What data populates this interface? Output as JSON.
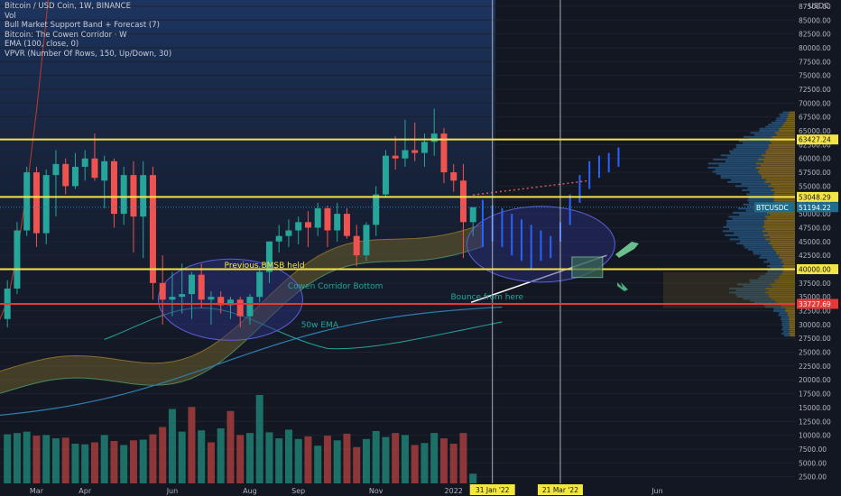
{
  "legend": {
    "title": "Bitcoin / USD Coin, 1W, BINANCE",
    "lines": [
      "Vol",
      "Bull Market Support Band + Forecast (7)",
      "Bitcoin: The Cowen Corridor · W",
      "EMA (100, close, 0)",
      "VPVR (Number Of Rows, 150, Up/Down, 30)"
    ]
  },
  "axis_currency": "USDC",
  "colors": {
    "up": "#26a69a",
    "down": "#ef5350",
    "level": "#f4e542",
    "support": "#e53935",
    "forecast": "#2962ff",
    "background": "#131722"
  },
  "chart_data": {
    "type": "candlestick",
    "ylim": [
      0,
      90000
    ],
    "ytick_labels": [
      "87500.00",
      "85000.00",
      "82500.00",
      "80000.00",
      "77500.00",
      "75000.00",
      "72500.00",
      "70000.00",
      "67500.00",
      "65000.00",
      "62500.00",
      "60000.00",
      "57500.00",
      "55000.00",
      "52500.00",
      "50000.00",
      "47500.00",
      "45000.00",
      "42500.00",
      "40000.00",
      "37500.00",
      "35000.00",
      "32500.00",
      "30000.00",
      "27500.00",
      "25000.00",
      "22500.00",
      "20000.00",
      "17500.00",
      "15000.00",
      "12500.00",
      "10000.00",
      "7500.00",
      "5000.00",
      "2500.00"
    ],
    "ytick_values": [
      87500,
      85000,
      82500,
      80000,
      77500,
      75000,
      72500,
      70000,
      67500,
      65000,
      62500,
      60000,
      57500,
      55000,
      52500,
      50000,
      47500,
      45000,
      42500,
      40000,
      37500,
      35000,
      32500,
      30000,
      27500,
      25000,
      22500,
      20000,
      17500,
      15000,
      12500,
      10000,
      7500,
      5000,
      2500
    ],
    "xtick_labels": [
      "Mar",
      "Apr",
      "Jun",
      "Aug",
      "Sep",
      "Nov",
      "2022",
      "Jun"
    ],
    "xtick_weeks": [
      3,
      8,
      17,
      25,
      30,
      38,
      46,
      67
    ],
    "date_markers": [
      {
        "label": "31 Jan '22",
        "week": 50
      },
      {
        "label": "21 Mar '22",
        "week": 57
      }
    ],
    "price_levels": [
      {
        "label": "63427.24",
        "value": 63427.24,
        "kind": "level"
      },
      {
        "label": "53048.29",
        "value": 53048.29,
        "kind": "level"
      },
      {
        "label": "51194.22",
        "value": 51194.22,
        "kind": "current"
      },
      {
        "label": "40000.00",
        "value": 40000,
        "kind": "level"
      },
      {
        "label": "33727.69",
        "value": 33727.69,
        "kind": "support"
      }
    ],
    "current_tag": "BTCUSDC",
    "candles": [
      [
        31000,
        38000,
        29500,
        36500
      ],
      [
        36500,
        48500,
        35500,
        47000
      ],
      [
        47000,
        58500,
        46000,
        57500
      ],
      [
        57500,
        58500,
        44000,
        46500
      ],
      [
        46500,
        58000,
        44500,
        57000
      ],
      [
        57000,
        61500,
        49500,
        59000
      ],
      [
        59000,
        60000,
        53500,
        55000
      ],
      [
        55000,
        61000,
        54500,
        58500
      ],
      [
        58500,
        61500,
        56000,
        60000
      ],
      [
        60000,
        64500,
        56000,
        56500
      ],
      [
        56000,
        60500,
        51000,
        59500
      ],
      [
        59500,
        60000,
        47500,
        50000
      ],
      [
        50000,
        58500,
        48000,
        57000
      ],
      [
        57000,
        59500,
        43000,
        49500
      ],
      [
        49500,
        59500,
        42000,
        57000
      ],
      [
        57000,
        58500,
        34500,
        37500
      ],
      [
        37500,
        42500,
        30000,
        34500
      ],
      [
        34500,
        39500,
        31500,
        35000
      ],
      [
        35000,
        41000,
        32000,
        35500
      ],
      [
        35500,
        39500,
        31000,
        39000
      ],
      [
        39000,
        41000,
        33000,
        34500
      ],
      [
        34500,
        36000,
        30000,
        35000
      ],
      [
        35000,
        36000,
        32000,
        33500
      ],
      [
        33500,
        35000,
        31000,
        34500
      ],
      [
        34500,
        35000,
        29500,
        31500
      ],
      [
        31500,
        35500,
        30000,
        35000
      ],
      [
        35000,
        40500,
        34000,
        39500
      ],
      [
        39500,
        45000,
        37500,
        45000
      ],
      [
        45000,
        48000,
        43000,
        46000
      ],
      [
        46000,
        49000,
        44000,
        47000
      ],
      [
        47000,
        49500,
        44500,
        48500
      ],
      [
        48500,
        50500,
        44000,
        47500
      ],
      [
        47500,
        52000,
        46000,
        51000
      ],
      [
        51000,
        51500,
        44000,
        47000
      ],
      [
        47000,
        52000,
        45000,
        50000
      ],
      [
        50000,
        51000,
        45500,
        46000
      ],
      [
        46000,
        48000,
        40500,
        42500
      ],
      [
        42500,
        48500,
        41500,
        48000
      ],
      [
        48000,
        55000,
        46000,
        53500
      ],
      [
        53500,
        61500,
        53000,
        60500
      ],
      [
        60500,
        64000,
        58000,
        60000
      ],
      [
        60000,
        67000,
        58500,
        61500
      ],
      [
        61500,
        66500,
        59500,
        61000
      ],
      [
        61000,
        64500,
        58500,
        63000
      ],
      [
        63000,
        69000,
        60500,
        64500
      ],
      [
        64500,
        65500,
        55500,
        57500
      ],
      [
        57500,
        59000,
        54000,
        56000
      ],
      [
        56000,
        59000,
        42000,
        48500
      ],
      [
        48500,
        51000,
        46000,
        51200
      ]
    ],
    "projection": [
      [
        52500,
        44000
      ],
      [
        51500,
        45000
      ],
      [
        51000,
        44000
      ],
      [
        50000,
        42500
      ],
      [
        49000,
        41500
      ],
      [
        48000,
        40000
      ],
      [
        47000,
        41500
      ],
      [
        46000,
        42000
      ],
      [
        48500,
        45000
      ],
      [
        53500,
        48000
      ],
      [
        57000,
        52000
      ],
      [
        59500,
        54500
      ],
      [
        60500,
        56500
      ],
      [
        61000,
        57500
      ],
      [
        62000,
        58500
      ]
    ],
    "volumes": [
      8.7,
      8.9,
      9.1,
      8.5,
      8.6,
      8.1,
      8.2,
      7.3,
      7.2,
      7.5,
      8.6,
      7.7,
      7.1,
      7.8,
      7.9,
      8.7,
      9.8,
      12.5,
      9.1,
      12.8,
      9.3,
      7.5,
      9.6,
      12.2,
      8.6,
      8.9,
      14.6,
      9.0,
      8.1,
      9.4,
      8.0,
      8.4,
      7.0,
      8.5,
      7.8,
      8.8,
      6.8,
      8.0,
      9.2,
      8.3,
      8.9,
      8.6,
      7.1,
      7.4,
      8.9,
      8.1,
      7.3,
      8.9,
      2.8
    ],
    "volume_up": [
      1,
      1,
      1,
      0,
      1,
      1,
      0,
      1,
      1,
      0,
      1,
      0,
      1,
      0,
      1,
      0,
      0,
      1,
      1,
      0,
      1,
      0,
      1,
      0,
      0,
      1,
      1,
      1,
      1,
      1,
      1,
      0,
      1,
      0,
      1,
      0,
      0,
      1,
      1,
      1,
      0,
      1,
      0,
      1,
      1,
      0,
      0,
      0,
      1
    ],
    "annotations": [
      {
        "text": "Previous BMSB held",
        "week": 26.5,
        "price": 40750,
        "color": "#f4e542"
      },
      {
        "text": "Cowen Corridor Bottom",
        "week": 28.9,
        "price": 37000,
        "color": "#26a69a"
      },
      {
        "text": "50w EMA",
        "week": 32.2,
        "price": 30000,
        "color": "#26a69a"
      },
      {
        "text": "Bounce from here",
        "week": 45.7,
        "price": 35000,
        "color": "#26a69a"
      }
    ]
  }
}
